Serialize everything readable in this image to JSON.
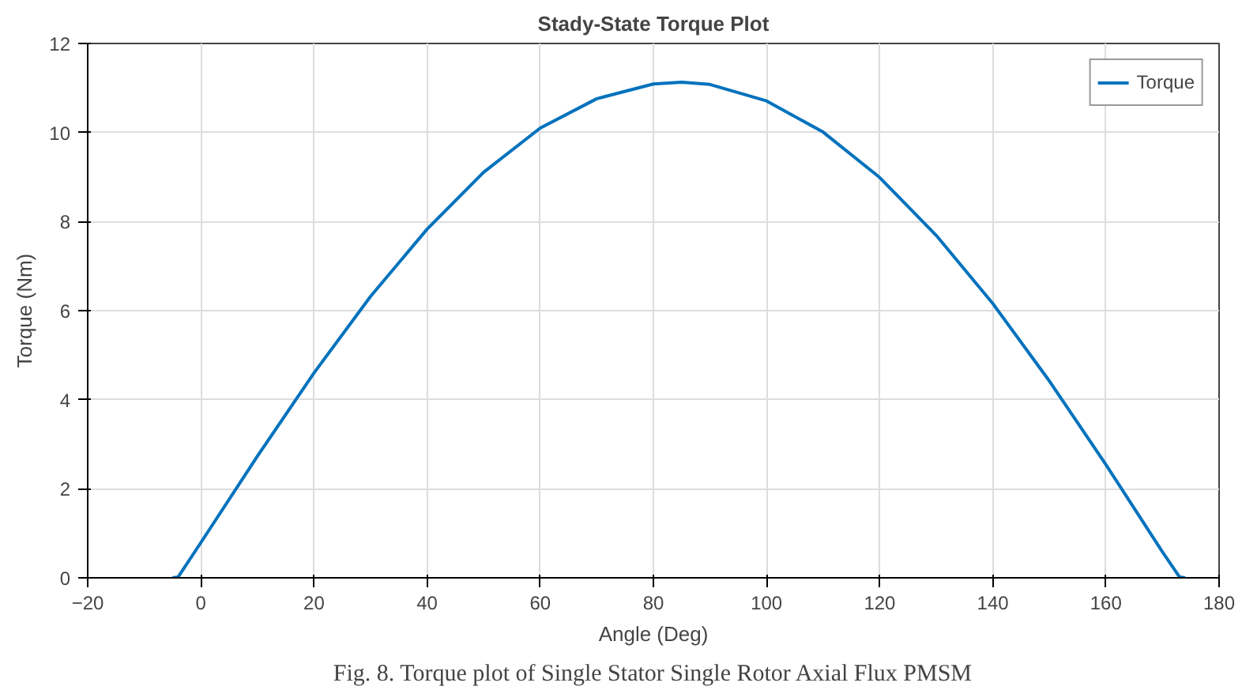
{
  "chart_data": {
    "type": "line",
    "title": "Stady-State Torque Plot",
    "xlabel": "Angle (Deg)",
    "ylabel": "Torque (Nm)",
    "annotations": [
      "Fig. 8. Torque plot of Single Stator Single Rotor Axial Flux PMSM"
    ],
    "x": [
      -5,
      -4,
      0,
      10,
      20,
      30,
      40,
      50,
      60,
      70,
      80,
      85,
      90,
      100,
      110,
      120,
      130,
      140,
      150,
      160,
      170,
      173,
      174
    ],
    "series": [
      {
        "name": "Torque",
        "color": "#0072bd",
        "values": [
          0,
          0.02,
          0.79,
          2.73,
          4.6,
          6.32,
          7.83,
          9.11,
          10.1,
          10.76,
          11.09,
          11.13,
          11.08,
          10.71,
          10.01,
          8.99,
          7.69,
          6.16,
          4.42,
          2.54,
          0.58,
          0.02,
          0
        ]
      }
    ],
    "xlim": [
      -20,
      180
    ],
    "ylim": [
      0,
      12
    ],
    "xticks": [
      -20,
      0,
      20,
      40,
      60,
      80,
      100,
      120,
      140,
      160,
      180
    ],
    "yticks": [
      0,
      2,
      4,
      6,
      8,
      10,
      12
    ],
    "grid": true,
    "legend": "top right",
    "line_style": "solid",
    "marker": "none"
  }
}
